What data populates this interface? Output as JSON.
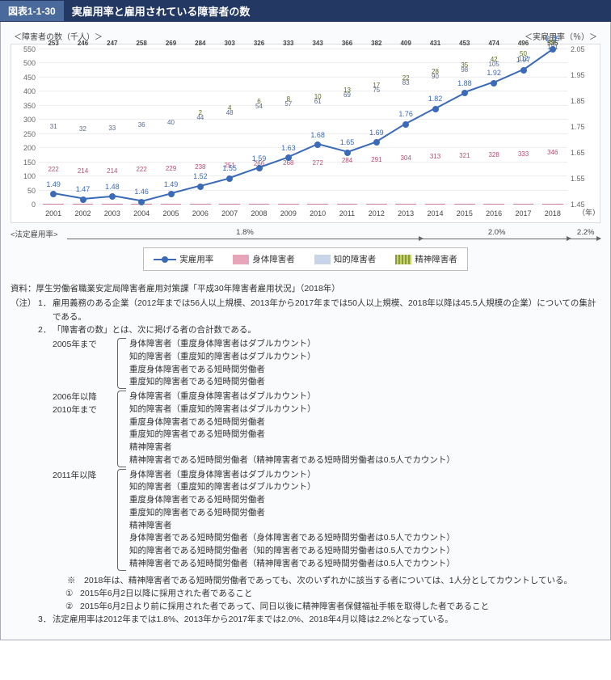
{
  "title_num": "図表1-1-30",
  "title_text": "実雇用率と雇用されている障害者の数",
  "axis_left": "＜障害者の数（千人）＞",
  "axis_right": "＜実雇用率（％）＞",
  "year_suffix": "（年）",
  "chart": {
    "type": "bar+line",
    "yl": {
      "min": 0,
      "max": 550,
      "step": 50
    },
    "yr": {
      "min": 1.45,
      "max": 2.05,
      "step": 0.1
    },
    "colors": {
      "body": "#e8a4b8",
      "intl": "#c8d4e8",
      "ment": "#8a9a3a",
      "line": "#3a6ab8",
      "bg": "#ffffff"
    },
    "years": [
      2001,
      2002,
      2003,
      2004,
      2005,
      2006,
      2007,
      2008,
      2009,
      2010,
      2011,
      2012,
      2013,
      2014,
      2015,
      2016,
      2017,
      2018
    ],
    "body": [
      222,
      214,
      214,
      222,
      229,
      238,
      251,
      266,
      268,
      272,
      284,
      291,
      304,
      313,
      321,
      328,
      333,
      346
    ],
    "intl": [
      31,
      32,
      33,
      36,
      40,
      44,
      48,
      54,
      57,
      61,
      69,
      75,
      83,
      90,
      98,
      105,
      112,
      121
    ],
    "ment": [
      0,
      0,
      0,
      0,
      0,
      2,
      4,
      6,
      8,
      10,
      13,
      17,
      22,
      28,
      35,
      42,
      50,
      67
    ],
    "sum": [
      253,
      246,
      247,
      258,
      269,
      284,
      303,
      326,
      333,
      343,
      366,
      382,
      409,
      431,
      453,
      474,
      496,
      535
    ],
    "rate": [
      1.49,
      1.47,
      1.48,
      1.46,
      1.49,
      1.52,
      1.55,
      1.59,
      1.63,
      1.68,
      1.65,
      1.69,
      1.76,
      1.82,
      1.88,
      1.92,
      1.97,
      2.05
    ]
  },
  "legal": {
    "label": "<法定雇用率>",
    "segs": [
      {
        "text": "1.8%",
        "span": 12
      },
      {
        "text": "2.0%",
        "span": 5
      },
      {
        "text": "2.2%",
        "span": 1
      }
    ]
  },
  "legend": {
    "rate": "実雇用率",
    "body": "身体障害者",
    "intl": "知的障害者",
    "ment": "精神障害者"
  },
  "notes": {
    "source": "資料：厚生労働省職業安定局障害者雇用対策課「平成30年障害者雇用状況」（2018年）",
    "note_label": "（注）",
    "n1": "雇用義務のある企業（2012年までは56人以上規模、2013年から2017年までは50人以上規模、2018年以降は45.5人規模の企業）についての集計である。",
    "n2_head": "「障害者の数」とは、次に掲げる者の合計数である。",
    "periods": [
      {
        "yr": "2005年まで",
        "items": [
          "身体障害者（重度身体障害者はダブルカウント）",
          "知的障害者（重度知的障害者はダブルカウント）",
          "重度身体障害者である短時間労働者",
          "重度知的障害者である短時間労働者"
        ]
      },
      {
        "yr": "2006年以降\n2010年まで",
        "items": [
          "身体障害者（重度身体障害者はダブルカウント）",
          "知的障害者（重度知的障害者はダブルカウント）",
          "重度身体障害者である短時間労働者",
          "重度知的障害者である短時間労働者",
          "精神障害者",
          "精神障害者である短時間労働者（精神障害者である短時間労働者は0.5人でカウント）"
        ]
      },
      {
        "yr": "2011年以降",
        "items": [
          "身体障害者（重度身体障害者はダブルカウント）",
          "知的障害者（重度知的障害者はダブルカウント）",
          "重度身体障害者である短時間労働者",
          "重度知的障害者である短時間労働者",
          "精神障害者",
          "身体障害者である短時間労働者（身体障害者である短時間労働者は0.5人でカウント）",
          "知的障害者である短時間労働者（知的障害者である短時間労働者は0.5人でカウント）",
          "精神障害者である短時間労働者（精神障害者である短時間労働者は0.5人でカウント）"
        ]
      }
    ],
    "asterisk": "※　2018年は、精神障害者である短時間労働者であっても、次のいずれかに該当する者については、1人分としてカウントしている。",
    "c1": "2015年6月2日以降に採用された者であること",
    "c2": "2015年6月2日より前に採用された者であって、同日以後に精神障害者保健福祉手帳を取得した者であること",
    "n3": "法定雇用率は2012年までは1.8%、2013年から2017年までは2.0%、2018年4月以降は2.2%となっている。"
  }
}
